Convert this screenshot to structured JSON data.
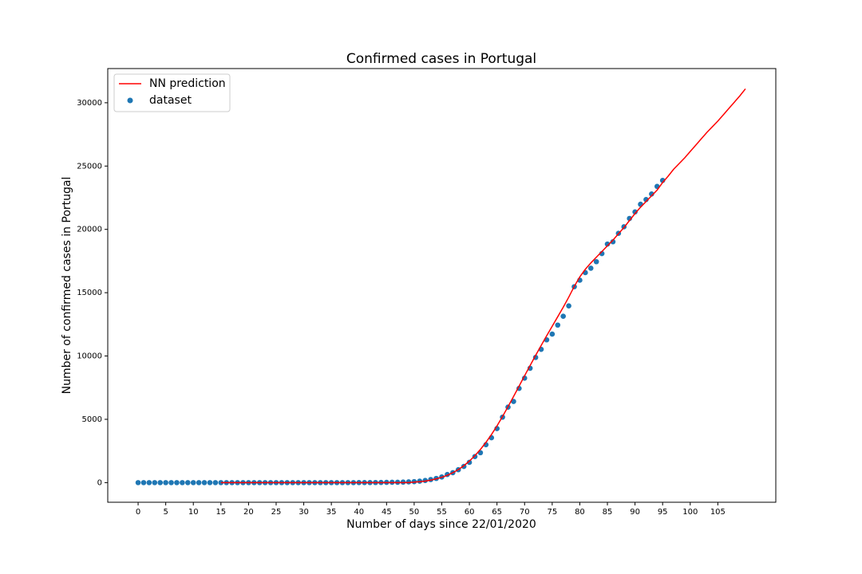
{
  "chart_data": {
    "type": "line",
    "title": "Confirmed cases in Portugal",
    "x_label": "Number of days since 22/01/2020",
    "y_label": "Number of confirmed cases in Portugal",
    "xlim": [
      -5.5,
      115.5
    ],
    "ylim": [
      -1550,
      32700
    ],
    "xticks": [
      0,
      5,
      10,
      15,
      20,
      25,
      30,
      35,
      40,
      45,
      50,
      55,
      60,
      65,
      70,
      75,
      80,
      85,
      90,
      95,
      100,
      105
    ],
    "yticks": [
      0,
      5000,
      10000,
      15000,
      20000,
      25000,
      30000
    ],
    "grid": false,
    "legend": "upper left",
    "series": [
      {
        "name": "NN prediction",
        "type": "line",
        "color": "#ff0000",
        "x": [
          15,
          16,
          17,
          18,
          19,
          20,
          21,
          22,
          23,
          24,
          25,
          26,
          27,
          28,
          29,
          30,
          31,
          32,
          33,
          34,
          35,
          36,
          37,
          38,
          39,
          40,
          41,
          42,
          43,
          44,
          45,
          46,
          47,
          48,
          49,
          50,
          51,
          52,
          53,
          54,
          55,
          56,
          57,
          58,
          59,
          60,
          61,
          62,
          63,
          64,
          65,
          66,
          67,
          68,
          69,
          70,
          71,
          72,
          73,
          74,
          75,
          76,
          77,
          78,
          79,
          80,
          81,
          82,
          83,
          84,
          85,
          86,
          87,
          88,
          89,
          90,
          91,
          92,
          93,
          94,
          95,
          96,
          97,
          98,
          99,
          100,
          101,
          102,
          103,
          104,
          105,
          106,
          107,
          108,
          109,
          110
        ],
        "values": [
          0,
          0,
          0,
          0,
          0,
          0,
          0,
          0,
          0,
          0,
          0,
          0,
          0,
          0,
          0,
          0,
          0,
          0,
          0,
          0,
          0,
          0,
          0,
          0,
          0,
          0,
          0,
          0,
          0,
          0,
          0,
          0,
          0,
          0,
          0,
          40,
          70,
          120,
          200,
          300,
          420,
          580,
          780,
          1030,
          1330,
          1700,
          2130,
          2620,
          3180,
          3800,
          4480,
          5220,
          6000,
          6800,
          7620,
          8440,
          9250,
          10050,
          10830,
          11600,
          12350,
          13100,
          13850,
          14650,
          15500,
          16250,
          16850,
          17350,
          17800,
          18250,
          18700,
          19150,
          19650,
          20150,
          20700,
          21250,
          21750,
          22200,
          22650,
          23100,
          23700,
          24200,
          24750,
          25200,
          25650,
          26150,
          26650,
          27150,
          27650,
          28100,
          28550,
          29050,
          29550,
          30050,
          30550,
          31100
        ]
      },
      {
        "name": "dataset",
        "type": "scatter",
        "color": "#1f77b4",
        "x": [
          0,
          1,
          2,
          3,
          4,
          5,
          6,
          7,
          8,
          9,
          10,
          11,
          12,
          13,
          14,
          15,
          16,
          17,
          18,
          19,
          20,
          21,
          22,
          23,
          24,
          25,
          26,
          27,
          28,
          29,
          30,
          31,
          32,
          33,
          34,
          35,
          36,
          37,
          38,
          39,
          40,
          41,
          42,
          43,
          44,
          45,
          46,
          47,
          48,
          49,
          50,
          51,
          52,
          53,
          54,
          55,
          56,
          57,
          58,
          59,
          60,
          61,
          62,
          63,
          64,
          65,
          66,
          67,
          68,
          69,
          70,
          71,
          72,
          73,
          74,
          75,
          76,
          77,
          78,
          79,
          80,
          81,
          82,
          83,
          84,
          85,
          86,
          87,
          88,
          89,
          90,
          91,
          92,
          93,
          94,
          95
        ],
        "values": [
          0,
          0,
          0,
          0,
          0,
          0,
          0,
          0,
          0,
          0,
          0,
          0,
          0,
          0,
          0,
          0,
          0,
          0,
          0,
          0,
          0,
          0,
          0,
          0,
          0,
          0,
          0,
          0,
          0,
          0,
          0,
          0,
          0,
          0,
          0,
          0,
          0,
          0,
          0,
          0,
          2,
          4,
          5,
          8,
          13,
          20,
          30,
          30,
          41,
          59,
          78,
          112,
          169,
          245,
          331,
          448,
          642,
          785,
          1020,
          1280,
          1600,
          2060,
          2362,
          2995,
          3544,
          4268,
          5170,
          5962,
          6408,
          7443,
          8251,
          9034,
          9886,
          10524,
          11278,
          11730,
          12442,
          13141,
          13956,
          15472,
          15987,
          16585,
          16934,
          17448,
          18091,
          18841,
          19022,
          19685,
          20206,
          20863,
          21379,
          21982,
          22353,
          22797,
          23392,
          23864
        ]
      }
    ]
  }
}
